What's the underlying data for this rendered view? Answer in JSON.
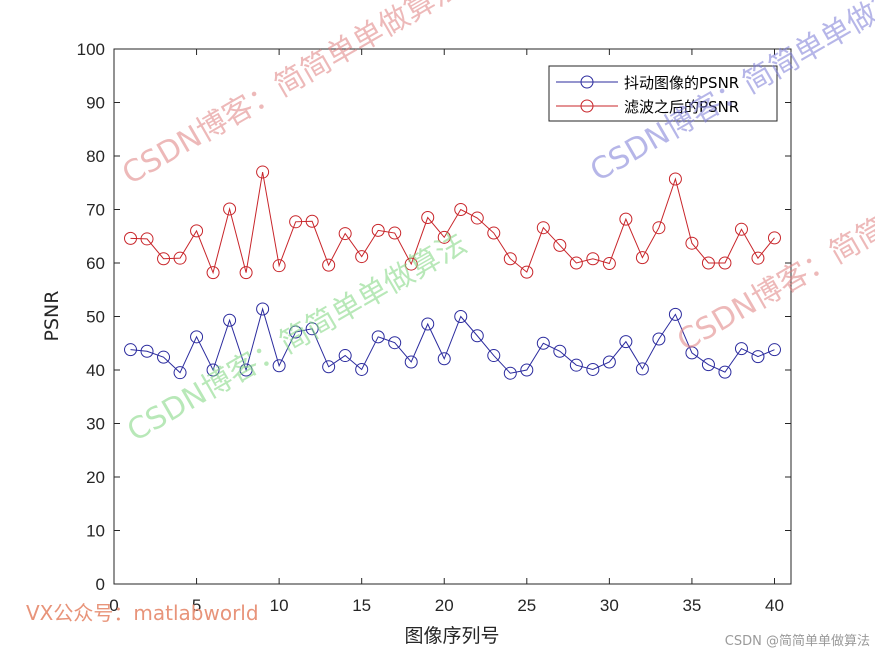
{
  "chart_data": {
    "type": "line",
    "xlabel": "图像序列号",
    "ylabel": "PSNR",
    "xlim": [
      0,
      41
    ],
    "ylim": [
      0,
      100
    ],
    "xticks": [
      0,
      5,
      10,
      15,
      20,
      25,
      30,
      35,
      40
    ],
    "yticks": [
      0,
      10,
      20,
      30,
      40,
      50,
      60,
      70,
      80,
      90,
      100
    ],
    "grid": false,
    "legend_position": "top-right",
    "x": [
      1,
      2,
      3,
      4,
      5,
      6,
      7,
      8,
      9,
      10,
      11,
      12,
      13,
      14,
      15,
      16,
      17,
      18,
      19,
      20,
      21,
      22,
      23,
      24,
      25,
      26,
      27,
      28,
      29,
      30,
      31,
      32,
      33,
      34,
      35,
      36,
      37,
      38,
      39,
      40
    ],
    "series": [
      {
        "name": "抖动图像的PSNR",
        "color": "#2b2b9e",
        "marker": "circle",
        "values": [
          43.8,
          43.5,
          42.4,
          39.5,
          46.2,
          40.0,
          49.3,
          40.0,
          51.4,
          40.8,
          47.1,
          47.7,
          40.6,
          42.7,
          40.1,
          46.2,
          45.1,
          41.5,
          48.6,
          42.1,
          50.0,
          46.4,
          42.7,
          39.4,
          40.0,
          45.0,
          43.5,
          40.9,
          40.1,
          41.5,
          45.3,
          40.2,
          45.8,
          50.4,
          43.2,
          41.0,
          39.6,
          44.0,
          42.5,
          43.8
        ]
      },
      {
        "name": "滤波之后的PSNR",
        "color": "#c8252a",
        "marker": "circle",
        "values": [
          64.6,
          64.5,
          60.8,
          60.9,
          66.0,
          58.2,
          70.1,
          58.2,
          77.0,
          59.5,
          67.7,
          67.8,
          59.6,
          65.5,
          61.2,
          66.1,
          65.6,
          59.8,
          68.5,
          64.8,
          70.0,
          68.4,
          65.6,
          60.8,
          58.3,
          66.6,
          63.3,
          60.0,
          60.8,
          59.9,
          68.2,
          61.0,
          66.6,
          75.7,
          63.7,
          60.0,
          60.0,
          66.3,
          60.9,
          64.7
        ]
      }
    ]
  },
  "watermarks": {
    "csdn_blog": "CSDN博客：简简单单做算法",
    "wm_red": "#e08080",
    "wm_blue": "#7b7bd6",
    "wm_green": "#7fd77f",
    "vx": "VX公众号：matlabworld",
    "footer": "CSDN @简简单单做算法"
  }
}
